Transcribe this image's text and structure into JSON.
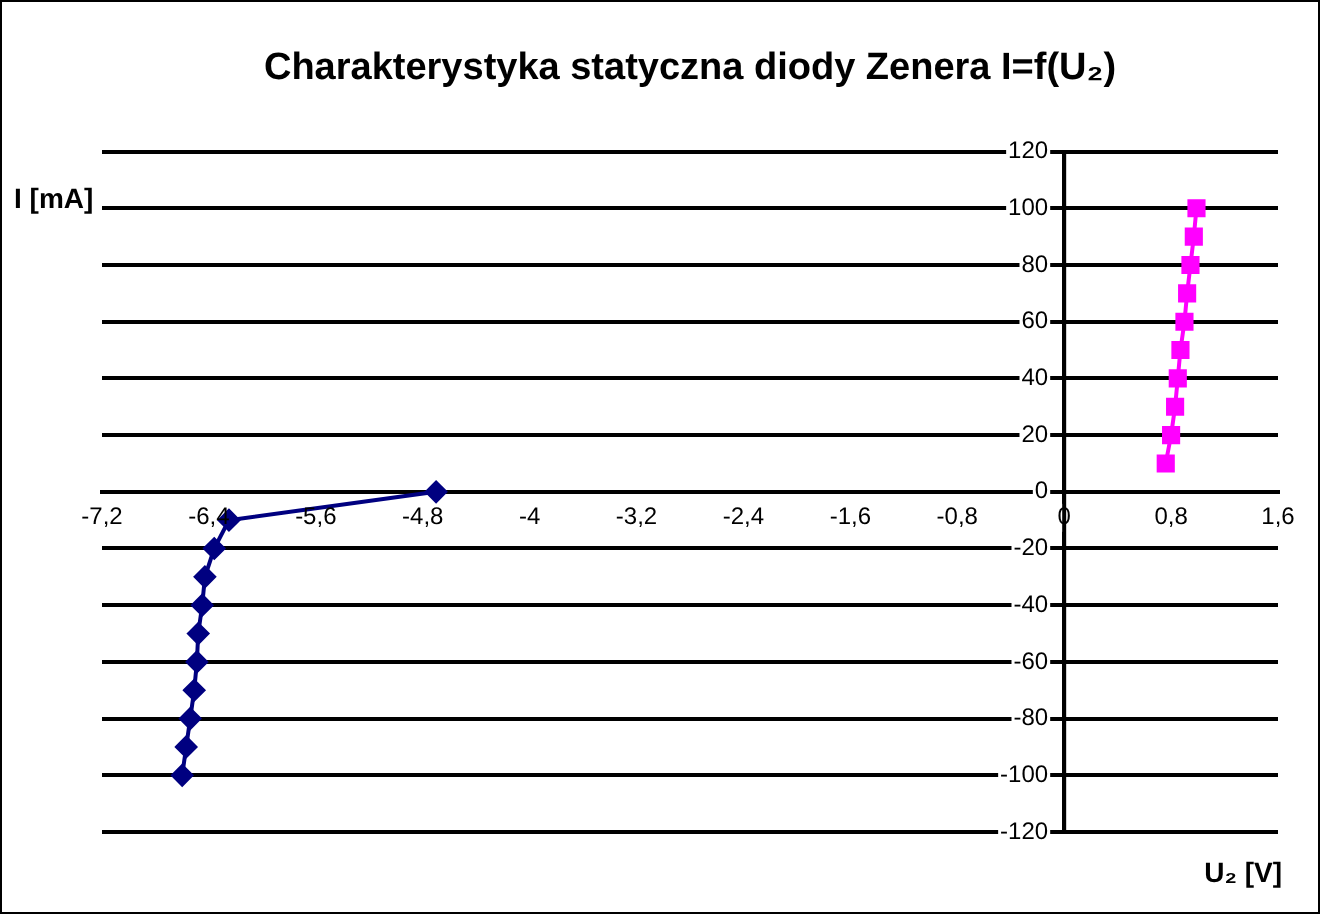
{
  "chart_data": {
    "type": "line",
    "title": "Charakterystyka statyczna diody Zenera I=f(U₂)",
    "xlabel": "U₂ [V]",
    "ylabel": "I [mA]",
    "xlim": [
      -7.2,
      1.6
    ],
    "xticks": [
      {
        "value": -7.2,
        "label": "-7,2"
      },
      {
        "value": -6.4,
        "label": "-6,4"
      },
      {
        "value": -5.6,
        "label": "-5,6"
      },
      {
        "value": -4.8,
        "label": "-4,8"
      },
      {
        "value": -4,
        "label": "-4"
      },
      {
        "value": -3.2,
        "label": "-3,2"
      },
      {
        "value": -2.4,
        "label": "-2,4"
      },
      {
        "value": -1.6,
        "label": "-1,6"
      },
      {
        "value": -0.8,
        "label": "-0,8"
      },
      {
        "value": 0,
        "label": "0"
      },
      {
        "value": 0.8,
        "label": "0,8"
      },
      {
        "value": 1.6,
        "label": "1,6"
      }
    ],
    "ylim": [
      -120,
      120
    ],
    "yticks": [
      -120,
      -100,
      -80,
      -60,
      -40,
      -20,
      0,
      20,
      40,
      60,
      80,
      100,
      120
    ],
    "grid": "y",
    "legend": false,
    "line_style": "solid",
    "series": [
      {
        "color": "#000080",
        "marker": "diamond",
        "x": [
          -4.7,
          -6.25,
          -6.36,
          -6.43,
          -6.45,
          -6.48,
          -6.49,
          -6.51,
          -6.54,
          -6.57,
          -6.6
        ],
        "values": [
          0,
          -10,
          -20,
          -30,
          -40,
          -50,
          -60,
          -70,
          -80,
          -90,
          -100
        ]
      },
      {
        "color": "#ff00ff",
        "marker": "square",
        "x": [
          0.76,
          0.8,
          0.83,
          0.85,
          0.87,
          0.9,
          0.92,
          0.945,
          0.97,
          0.99
        ],
        "values": [
          10,
          20,
          30,
          40,
          50,
          60,
          70,
          80,
          90,
          100
        ]
      }
    ]
  }
}
